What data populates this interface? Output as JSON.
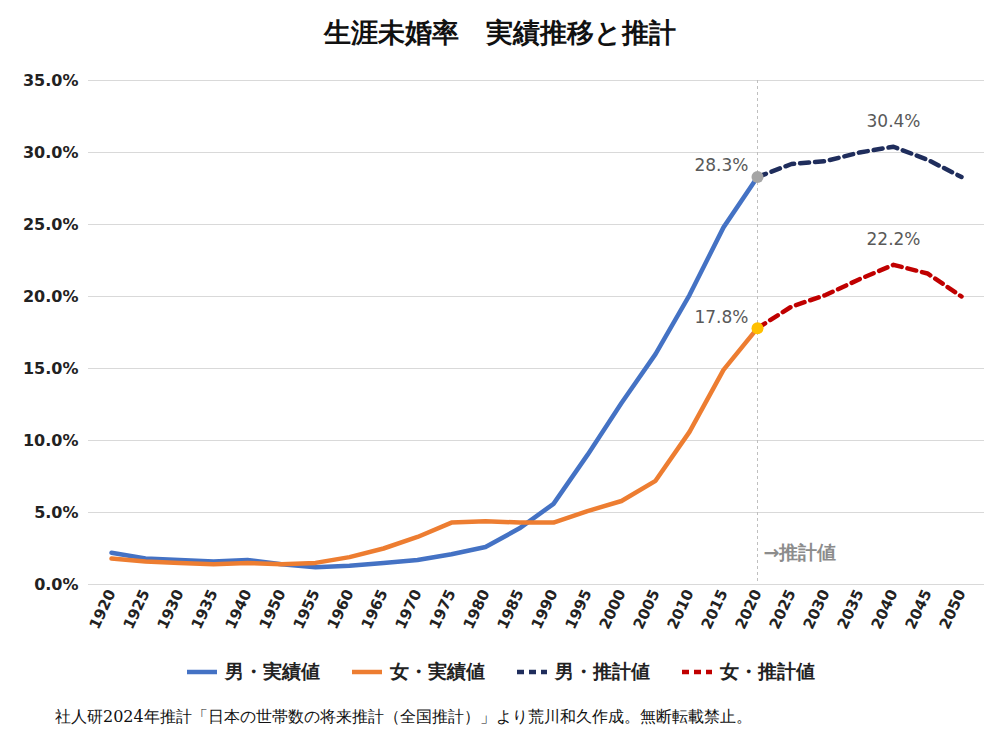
{
  "chart_data": {
    "type": "line",
    "title": "生涯未婚率　実績推移と推計",
    "source": "社人研2024年推計「日本の世帯数の将来推計（全国推計）」より荒川和久作成。無断転載禁止。",
    "categories": [
      1920,
      1925,
      1930,
      1935,
      1940,
      1950,
      1955,
      1960,
      1965,
      1970,
      1975,
      1980,
      1985,
      1990,
      1995,
      2000,
      2005,
      2010,
      2015,
      2020,
      2025,
      2030,
      2035,
      2040,
      2045,
      2050
    ],
    "series": [
      {
        "name": "男・実績値",
        "color": "#4472c4",
        "line_style": "solid",
        "values": [
          2.2,
          1.8,
          1.7,
          1.6,
          1.7,
          1.4,
          1.2,
          1.3,
          1.5,
          1.7,
          2.1,
          2.6,
          3.9,
          5.6,
          9.0,
          12.6,
          16.0,
          20.1,
          24.8,
          28.3,
          null,
          null,
          null,
          null,
          null,
          null
        ]
      },
      {
        "name": "女・実績値",
        "color": "#ed7d31",
        "line_style": "solid",
        "values": [
          1.8,
          1.6,
          1.5,
          1.4,
          1.5,
          1.4,
          1.5,
          1.9,
          2.5,
          3.3,
          4.3,
          4.4,
          4.3,
          4.3,
          5.1,
          5.8,
          7.2,
          10.6,
          14.9,
          17.8,
          null,
          null,
          null,
          null,
          null,
          null
        ]
      },
      {
        "name": "男・推計値",
        "color": "#1f2d5c",
        "line_style": "dashed",
        "values": [
          null,
          null,
          null,
          null,
          null,
          null,
          null,
          null,
          null,
          null,
          null,
          null,
          null,
          null,
          null,
          null,
          null,
          null,
          null,
          28.3,
          29.2,
          29.4,
          30.0,
          30.4,
          29.5,
          28.3
        ]
      },
      {
        "name": "女・推計値",
        "color": "#c00000",
        "line_style": "dashed",
        "values": [
          null,
          null,
          null,
          null,
          null,
          null,
          null,
          null,
          null,
          null,
          null,
          null,
          null,
          null,
          null,
          null,
          null,
          null,
          null,
          17.8,
          19.3,
          20.1,
          21.2,
          22.2,
          21.6,
          20.0
        ]
      }
    ],
    "ylim": [
      0,
      35
    ],
    "yticks": [
      {
        "value": 0,
        "label": "0.0%"
      },
      {
        "value": 5,
        "label": "5.0%"
      },
      {
        "value": 10,
        "label": "10.0%"
      },
      {
        "value": 15,
        "label": "15.0%"
      },
      {
        "value": 20,
        "label": "20.0%"
      },
      {
        "value": 25,
        "label": "25.0%"
      },
      {
        "value": 30,
        "label": "30.0%"
      },
      {
        "value": 35,
        "label": "35.0%"
      }
    ],
    "grid": true,
    "legend": "bottom",
    "annotations": [
      {
        "text": "28.3%",
        "x": 2020,
        "y": 28.3,
        "color": "#a5a5a5"
      },
      {
        "text": "17.8%",
        "x": 2020,
        "y": 17.8,
        "color": "#ffc000"
      },
      {
        "text": "30.4%",
        "x": 2040,
        "y": 30.4
      },
      {
        "text": "22.2%",
        "x": 2040,
        "y": 22.2
      },
      {
        "text": "→推計値",
        "x": 2020,
        "y": 2.2,
        "type": "vline"
      }
    ]
  }
}
